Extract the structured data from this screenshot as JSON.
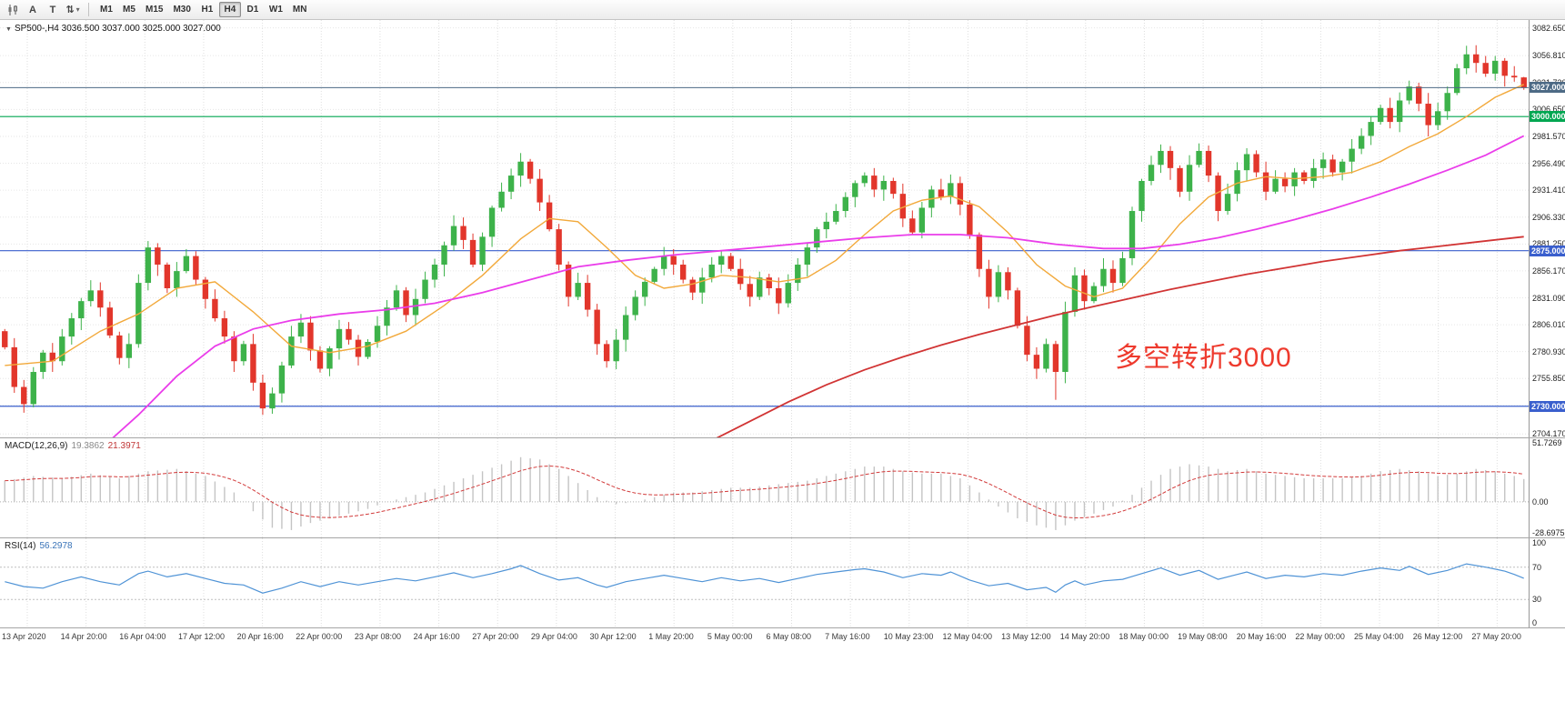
{
  "toolbar": {
    "icon_a": "A",
    "icon_t": "T",
    "icon_scale": "⇅",
    "caret": "▾",
    "timeframes": [
      {
        "label": "M1",
        "active": false
      },
      {
        "label": "M5",
        "active": false
      },
      {
        "label": "M15",
        "active": false
      },
      {
        "label": "M30",
        "active": false
      },
      {
        "label": "H1",
        "active": false
      },
      {
        "label": "H4",
        "active": true
      },
      {
        "label": "D1",
        "active": false
      },
      {
        "label": "W1",
        "active": false
      },
      {
        "label": "MN",
        "active": false
      }
    ]
  },
  "chart": {
    "dropdown_icon": "▼",
    "symbol_label": "SP500-,H4",
    "ohlc_text": "3036.500 3037.000 3025.000 3027.000",
    "annotation": {
      "text": "多空转折3000",
      "color": "#ee3a2d"
    },
    "price_axis": {
      "ticks": [
        "3082.650",
        "3056.810",
        "3031.730",
        "3006.650",
        "2981.570",
        "2956.490",
        "2931.410",
        "2906.330",
        "2881.250",
        "2856.170",
        "2831.090",
        "2806.010",
        "2780.930",
        "2755.850",
        "2730.770",
        "2704.170"
      ]
    },
    "levels": [
      {
        "price": 3000,
        "label": "3000.000",
        "color": "#00a651"
      },
      {
        "price": 2875,
        "label": "2875.000",
        "color": "#3a5fcd"
      },
      {
        "price": 2730,
        "label": "2730.000",
        "color": "#3a5fcd"
      }
    ],
    "current_price": {
      "price": 3027,
      "label": "3027.000",
      "color": "#4d6a85"
    }
  },
  "macd": {
    "label": "MACD(12,26,9)",
    "value1": "19.3862",
    "value2": "21.3971",
    "axis": [
      "51.7269",
      "0.00",
      "-28.6975"
    ],
    "range": [
      -28.6975,
      51.7269
    ]
  },
  "rsi": {
    "label": "RSI(14)",
    "value": "56.2978",
    "axis": [
      "100",
      "70",
      "30",
      "0"
    ],
    "levels": [
      70,
      30
    ],
    "range": [
      0,
      100
    ]
  },
  "time_axis": {
    "labels": [
      "13 Apr 2020",
      "14 Apr 20:00",
      "16 Apr 04:00",
      "17 Apr 12:00",
      "20 Apr 16:00",
      "22 Apr 00:00",
      "23 Apr 08:00",
      "24 Apr 16:00",
      "27 Apr 20:00",
      "29 Apr 04:00",
      "30 Apr 12:00",
      "1 May 20:00",
      "5 May 00:00",
      "6 May 08:00",
      "7 May 16:00",
      "10 May 23:00",
      "12 May 04:00",
      "13 May 12:00",
      "14 May 20:00",
      "18 May 00:00",
      "19 May 08:00",
      "20 May 16:00",
      "22 May 00:00",
      "25 May 04:00",
      "26 May 12:00",
      "27 May 20:00"
    ]
  },
  "chart_data": {
    "type": "candlestick",
    "symbol": "SP500-",
    "timeframe": "H4",
    "title": "SP500-,H4",
    "current_bar": {
      "open": 3036.5,
      "high": 3037.0,
      "low": 3025.0,
      "close": 3027.0
    },
    "price_range": [
      2701,
      3090
    ],
    "levels": [
      3000,
      2875,
      2730
    ],
    "bid": 3027,
    "colors": {
      "up": "#3db24a",
      "down": "#e2362b"
    },
    "first_open": 2800,
    "closes": [
      2785,
      2748,
      2732,
      2762,
      2780,
      2772,
      2795,
      2812,
      2828,
      2838,
      2822,
      2796,
      2775,
      2788,
      2845,
      2878,
      2862,
      2840,
      2856,
      2870,
      2848,
      2830,
      2812,
      2795,
      2772,
      2788,
      2752,
      2728,
      2742,
      2768,
      2795,
      2808,
      2782,
      2765,
      2784,
      2802,
      2792,
      2776,
      2790,
      2805,
      2822,
      2838,
      2815,
      2830,
      2848,
      2862,
      2880,
      2898,
      2885,
      2862,
      2888,
      2915,
      2930,
      2945,
      2958,
      2942,
      2920,
      2895,
      2862,
      2832,
      2845,
      2820,
      2788,
      2772,
      2792,
      2815,
      2832,
      2846,
      2858,
      2870,
      2862,
      2848,
      2836,
      2850,
      2862,
      2870,
      2858,
      2844,
      2832,
      2850,
      2840,
      2826,
      2845,
      2862,
      2878,
      2895,
      2902,
      2912,
      2925,
      2938,
      2945,
      2932,
      2940,
      2928,
      2905,
      2892,
      2915,
      2932,
      2925,
      2938,
      2918,
      2890,
      2858,
      2832,
      2855,
      2838,
      2805,
      2778,
      2765,
      2788,
      2762,
      2818,
      2852,
      2828,
      2842,
      2858,
      2845,
      2868,
      2912,
      2940,
      2955,
      2968,
      2952,
      2930,
      2955,
      2968,
      2945,
      2912,
      2928,
      2950,
      2965,
      2948,
      2930,
      2942,
      2935,
      2948,
      2940,
      2952,
      2960,
      2948,
      2958,
      2970,
      2982,
      2995,
      3008,
      2995,
      3015,
      3028,
      3012,
      2992,
      3005,
      3022,
      3045,
      3058,
      3050,
      3040,
      3052,
      3038,
      3036.5,
      3027
    ],
    "wick_overrides": {
      "2": {
        "low": 2724
      },
      "27": {
        "low": 2722
      },
      "54": {
        "high": 2966
      },
      "63": {
        "low": 2766
      },
      "90": {
        "high": 2948
      },
      "110": {
        "low": 2736
      },
      "121": {
        "high": 2974
      },
      "153": {
        "high": 3066
      },
      "159": {
        "high": 3037,
        "low": 3025
      }
    },
    "ma_fast": {
      "name": "MA fast",
      "color": "#f2a93b",
      "width": 1.4,
      "points": [
        [
          0,
          2768
        ],
        [
          5,
          2772
        ],
        [
          10,
          2800
        ],
        [
          14,
          2816
        ],
        [
          18,
          2840
        ],
        [
          22,
          2846
        ],
        [
          26,
          2818
        ],
        [
          30,
          2786
        ],
        [
          34,
          2780
        ],
        [
          38,
          2786
        ],
        [
          42,
          2800
        ],
        [
          46,
          2824
        ],
        [
          50,
          2852
        ],
        [
          54,
          2886
        ],
        [
          57,
          2905
        ],
        [
          60,
          2902
        ],
        [
          63,
          2878
        ],
        [
          66,
          2852
        ],
        [
          69,
          2840
        ],
        [
          72,
          2844
        ],
        [
          75,
          2852
        ],
        [
          78,
          2850
        ],
        [
          81,
          2846
        ],
        [
          84,
          2850
        ],
        [
          87,
          2866
        ],
        [
          90,
          2890
        ],
        [
          93,
          2912
        ],
        [
          96,
          2922
        ],
        [
          99,
          2926
        ],
        [
          102,
          2916
        ],
        [
          105,
          2892
        ],
        [
          108,
          2862
        ],
        [
          111,
          2842
        ],
        [
          114,
          2832
        ],
        [
          117,
          2840
        ],
        [
          120,
          2868
        ],
        [
          123,
          2900
        ],
        [
          126,
          2925
        ],
        [
          129,
          2938
        ],
        [
          132,
          2944
        ],
        [
          135,
          2942
        ],
        [
          138,
          2944
        ],
        [
          141,
          2948
        ],
        [
          144,
          2958
        ],
        [
          147,
          2972
        ],
        [
          150,
          2984
        ],
        [
          153,
          3000
        ],
        [
          156,
          3018
        ],
        [
          159,
          3030
        ]
      ]
    },
    "ma_mid": {
      "name": "MA mid",
      "color": "#ea3dea",
      "width": 1.8,
      "points": [
        [
          0,
          2652
        ],
        [
          6,
          2668
        ],
        [
          10,
          2690
        ],
        [
          14,
          2722
        ],
        [
          18,
          2758
        ],
        [
          22,
          2786
        ],
        [
          26,
          2802
        ],
        [
          30,
          2810
        ],
        [
          35,
          2816
        ],
        [
          40,
          2820
        ],
        [
          45,
          2826
        ],
        [
          50,
          2836
        ],
        [
          55,
          2848
        ],
        [
          60,
          2860
        ],
        [
          65,
          2866
        ],
        [
          70,
          2871
        ],
        [
          75,
          2875
        ],
        [
          80,
          2879
        ],
        [
          85,
          2883
        ],
        [
          90,
          2887
        ],
        [
          95,
          2890
        ],
        [
          100,
          2890
        ],
        [
          105,
          2887
        ],
        [
          110,
          2881
        ],
        [
          115,
          2877
        ],
        [
          119,
          2877
        ],
        [
          123,
          2881
        ],
        [
          127,
          2887
        ],
        [
          131,
          2895
        ],
        [
          135,
          2904
        ],
        [
          139,
          2914
        ],
        [
          143,
          2925
        ],
        [
          147,
          2937
        ],
        [
          151,
          2950
        ],
        [
          155,
          2964
        ],
        [
          159,
          2982
        ]
      ]
    },
    "ma_slow": {
      "name": "MA slow",
      "color": "#d13434",
      "width": 1.8,
      "points": [
        [
          74,
          2698
        ],
        [
          78,
          2716
        ],
        [
          82,
          2734
        ],
        [
          86,
          2750
        ],
        [
          90,
          2764
        ],
        [
          94,
          2776
        ],
        [
          98,
          2787
        ],
        [
          102,
          2797
        ],
        [
          106,
          2806
        ],
        [
          110,
          2815
        ],
        [
          114,
          2823
        ],
        [
          118,
          2831
        ],
        [
          122,
          2839
        ],
        [
          126,
          2846
        ],
        [
          130,
          2853
        ],
        [
          134,
          2859
        ],
        [
          138,
          2865
        ],
        [
          142,
          2870
        ],
        [
          146,
          2875
        ],
        [
          150,
          2879
        ],
        [
          154,
          2883
        ],
        [
          159,
          2888
        ]
      ]
    },
    "macd_current": {
      "macd": 19.3862,
      "signal": 21.3971
    },
    "macd_points": [
      [
        0,
        18
      ],
      [
        3,
        22
      ],
      [
        6,
        20
      ],
      [
        9,
        24
      ],
      [
        12,
        20
      ],
      [
        15,
        26
      ],
      [
        18,
        28
      ],
      [
        21,
        22
      ],
      [
        24,
        8
      ],
      [
        26,
        -8
      ],
      [
        28,
        -22
      ],
      [
        30,
        -24
      ],
      [
        32,
        -18
      ],
      [
        34,
        -14
      ],
      [
        36,
        -10
      ],
      [
        38,
        -6
      ],
      [
        40,
        0
      ],
      [
        42,
        4
      ],
      [
        44,
        8
      ],
      [
        46,
        14
      ],
      [
        48,
        20
      ],
      [
        50,
        26
      ],
      [
        52,
        32
      ],
      [
        54,
        38
      ],
      [
        56,
        36
      ],
      [
        58,
        28
      ],
      [
        60,
        16
      ],
      [
        62,
        4
      ],
      [
        64,
        -2
      ],
      [
        66,
        0
      ],
      [
        68,
        4
      ],
      [
        70,
        8
      ],
      [
        72,
        8
      ],
      [
        74,
        10
      ],
      [
        76,
        12
      ],
      [
        78,
        12
      ],
      [
        80,
        14
      ],
      [
        82,
        16
      ],
      [
        84,
        18
      ],
      [
        86,
        22
      ],
      [
        88,
        26
      ],
      [
        90,
        30
      ],
      [
        92,
        30
      ],
      [
        94,
        26
      ],
      [
        96,
        24
      ],
      [
        98,
        24
      ],
      [
        100,
        20
      ],
      [
        102,
        8
      ],
      [
        104,
        -4
      ],
      [
        106,
        -14
      ],
      [
        108,
        -20
      ],
      [
        110,
        -24
      ],
      [
        112,
        -16
      ],
      [
        114,
        -10
      ],
      [
        116,
        -4
      ],
      [
        118,
        6
      ],
      [
        120,
        18
      ],
      [
        122,
        28
      ],
      [
        124,
        32
      ],
      [
        126,
        30
      ],
      [
        128,
        26
      ],
      [
        130,
        28
      ],
      [
        132,
        24
      ],
      [
        134,
        22
      ],
      [
        136,
        20
      ],
      [
        138,
        20
      ],
      [
        140,
        20
      ],
      [
        142,
        22
      ],
      [
        144,
        26
      ],
      [
        146,
        28
      ],
      [
        148,
        26
      ],
      [
        150,
        22
      ],
      [
        152,
        24
      ],
      [
        154,
        28
      ],
      [
        156,
        26
      ],
      [
        158,
        22
      ],
      [
        159,
        19.4
      ]
    ],
    "rsi_current": 56.2978,
    "rsi_points": [
      [
        0,
        52
      ],
      [
        2,
        46
      ],
      [
        4,
        44
      ],
      [
        6,
        52
      ],
      [
        8,
        58
      ],
      [
        10,
        52
      ],
      [
        12,
        48
      ],
      [
        14,
        62
      ],
      [
        15,
        65
      ],
      [
        17,
        58
      ],
      [
        19,
        62
      ],
      [
        21,
        56
      ],
      [
        23,
        50
      ],
      [
        25,
        48
      ],
      [
        27,
        38
      ],
      [
        29,
        44
      ],
      [
        31,
        52
      ],
      [
        33,
        46
      ],
      [
        35,
        52
      ],
      [
        37,
        48
      ],
      [
        39,
        52
      ],
      [
        41,
        56
      ],
      [
        43,
        53
      ],
      [
        45,
        58
      ],
      [
        47,
        63
      ],
      [
        49,
        57
      ],
      [
        51,
        62
      ],
      [
        53,
        68
      ],
      [
        54,
        72
      ],
      [
        56,
        62
      ],
      [
        58,
        54
      ],
      [
        60,
        57
      ],
      [
        62,
        48
      ],
      [
        63,
        45
      ],
      [
        65,
        52
      ],
      [
        67,
        56
      ],
      [
        69,
        60
      ],
      [
        71,
        56
      ],
      [
        73,
        52
      ],
      [
        75,
        57
      ],
      [
        77,
        53
      ],
      [
        79,
        56
      ],
      [
        81,
        51
      ],
      [
        83,
        56
      ],
      [
        85,
        61
      ],
      [
        87,
        64
      ],
      [
        89,
        67
      ],
      [
        90,
        68
      ],
      [
        92,
        64
      ],
      [
        94,
        57
      ],
      [
        96,
        62
      ],
      [
        98,
        60
      ],
      [
        99,
        64
      ],
      [
        101,
        54
      ],
      [
        103,
        47
      ],
      [
        105,
        50
      ],
      [
        107,
        42
      ],
      [
        109,
        45
      ],
      [
        110,
        39
      ],
      [
        111,
        48
      ],
      [
        112,
        53
      ],
      [
        113,
        48
      ],
      [
        115,
        53
      ],
      [
        117,
        55
      ],
      [
        119,
        62
      ],
      [
        121,
        69
      ],
      [
        123,
        60
      ],
      [
        125,
        66
      ],
      [
        127,
        55
      ],
      [
        129,
        61
      ],
      [
        130,
        64
      ],
      [
        132,
        56
      ],
      [
        134,
        60
      ],
      [
        136,
        58
      ],
      [
        138,
        62
      ],
      [
        140,
        60
      ],
      [
        142,
        65
      ],
      [
        144,
        69
      ],
      [
        146,
        66
      ],
      [
        147,
        71
      ],
      [
        149,
        61
      ],
      [
        151,
        66
      ],
      [
        153,
        74
      ],
      [
        155,
        70
      ],
      [
        157,
        65
      ],
      [
        158,
        61
      ],
      [
        159,
        56.3
      ]
    ]
  }
}
